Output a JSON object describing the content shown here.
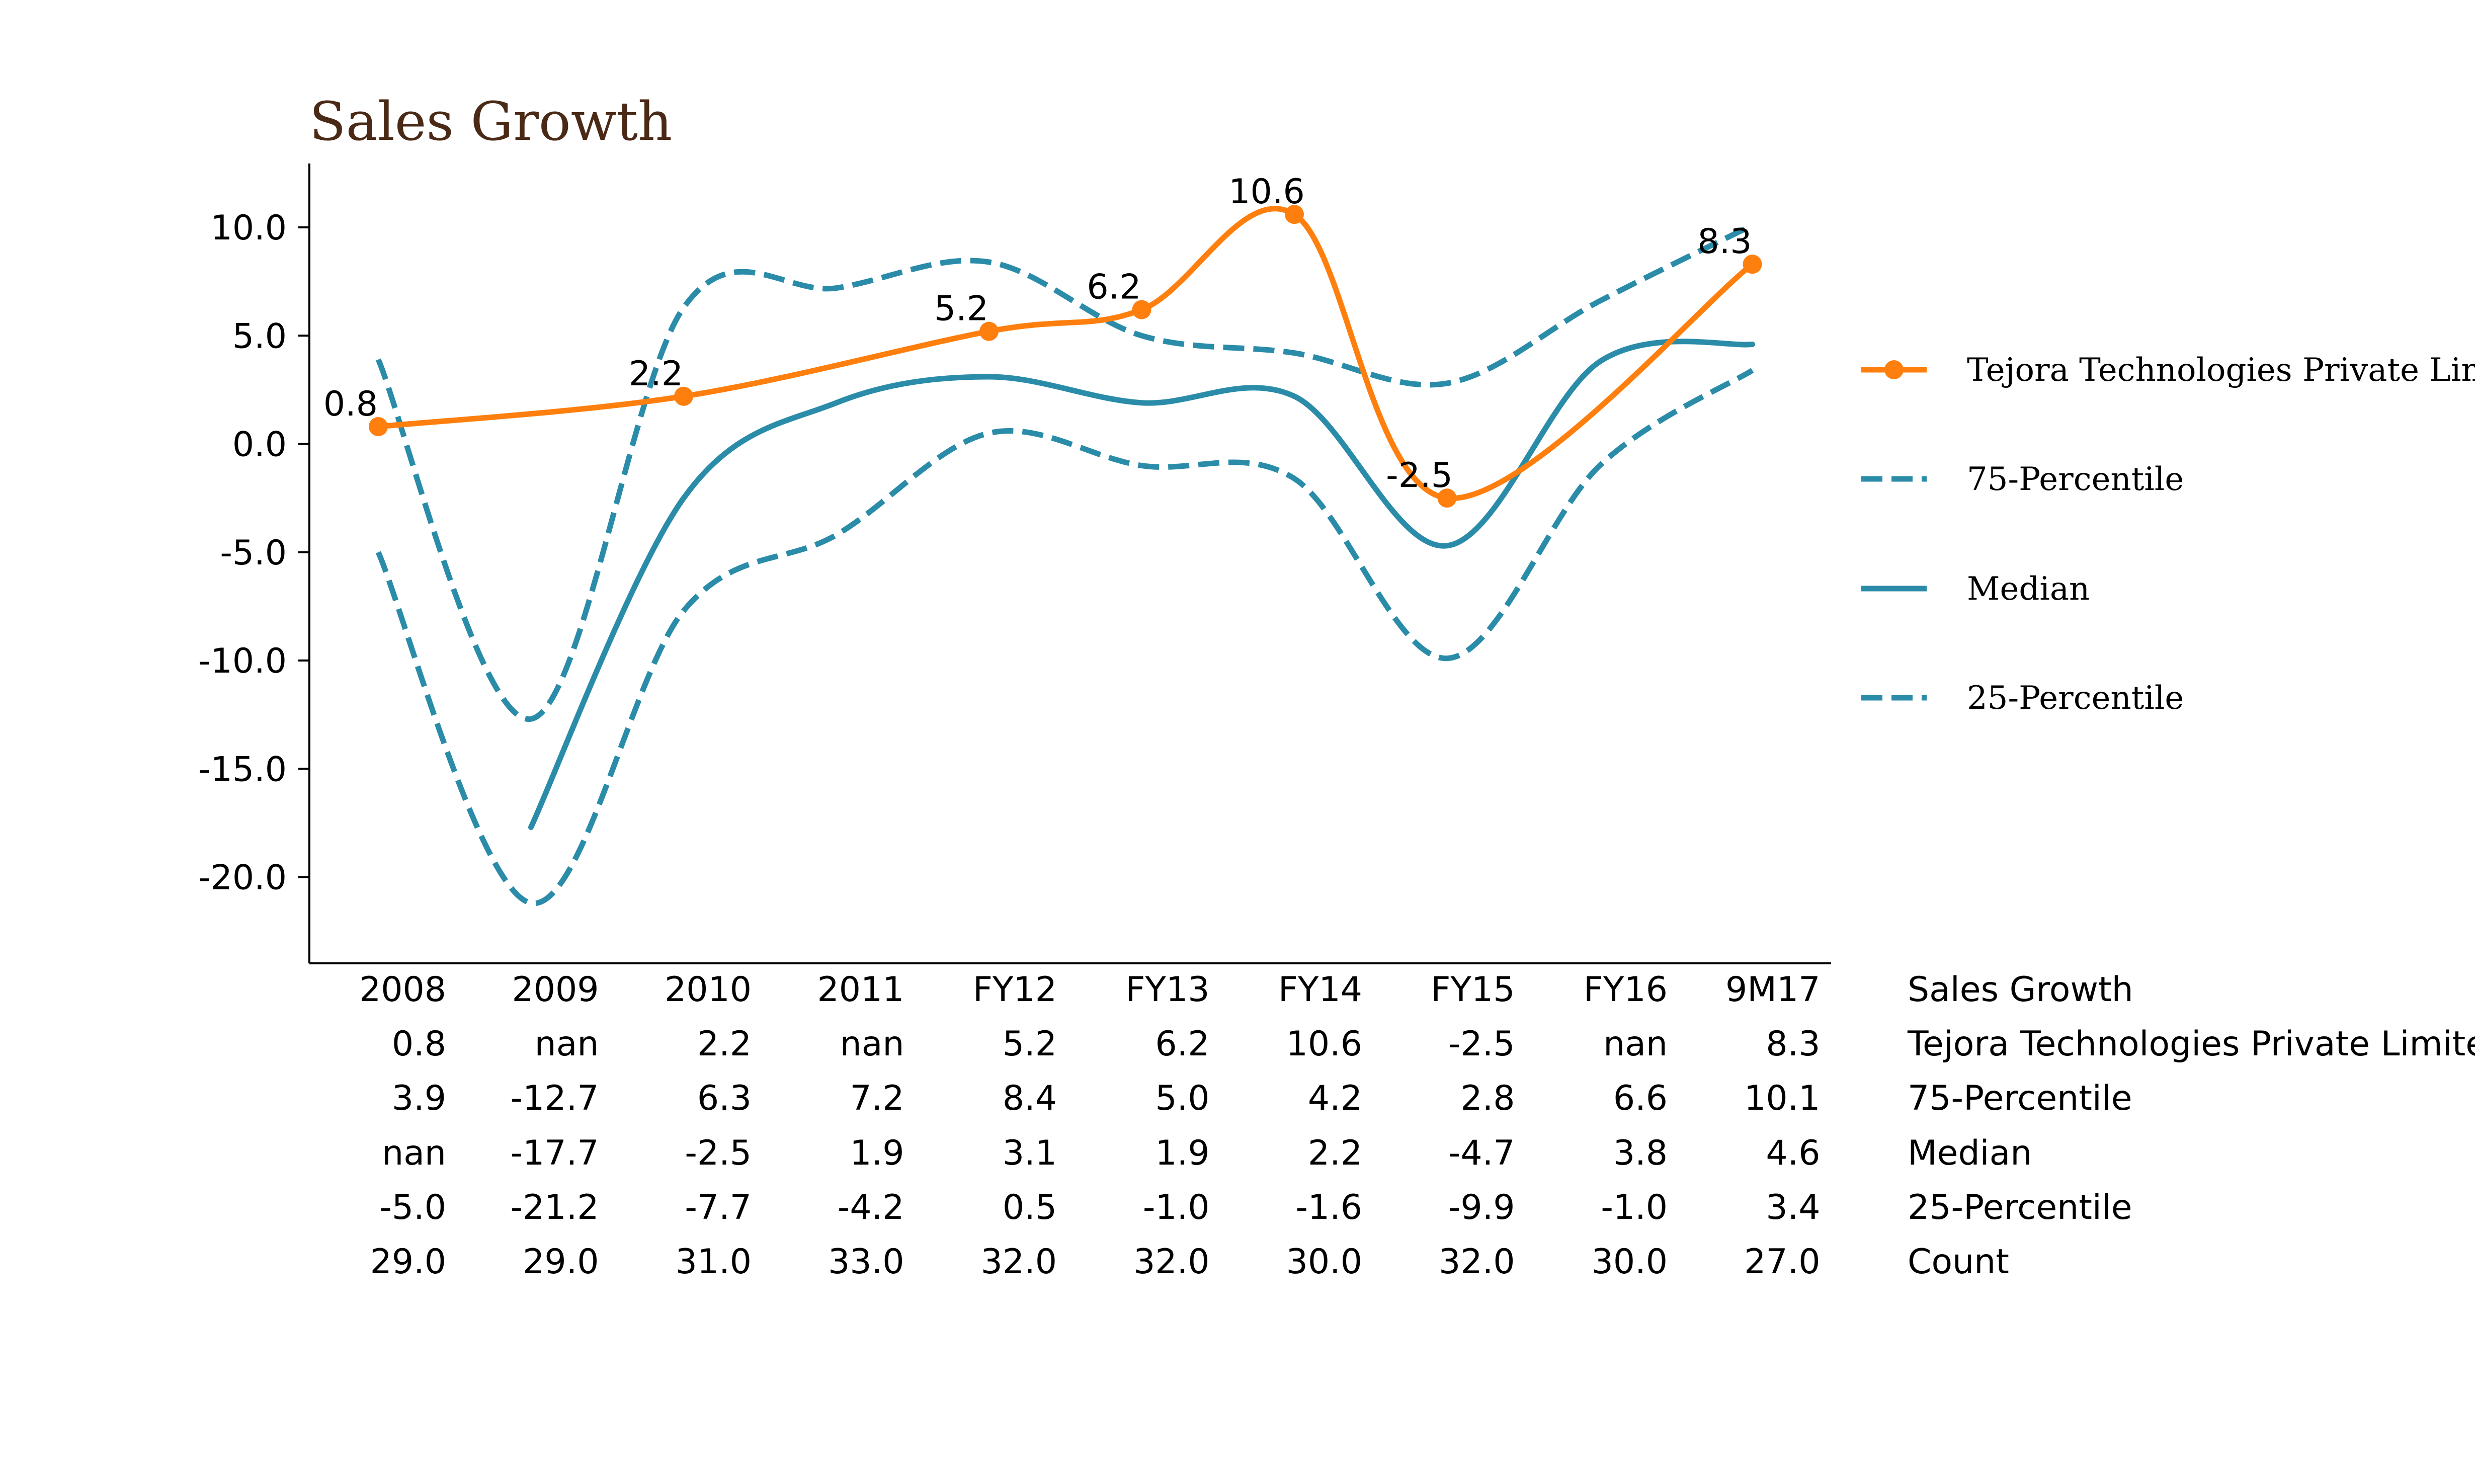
{
  "chart_data": {
    "type": "line",
    "title": "Sales Growth",
    "categories": [
      "2008",
      "2009",
      "2010",
      "2011",
      "FY12",
      "FY13",
      "FY14",
      "FY15",
      "FY16",
      "9M17"
    ],
    "y_ticks": [
      "10.0",
      "5.0",
      "0.0",
      "-5.0",
      "-10.0",
      "-15.0",
      "-20.0"
    ],
    "ylim": [
      -24,
      13
    ],
    "grid": false,
    "legend_position": "right",
    "series": [
      {
        "name": "Tejora Technologies Private Limited",
        "style": "solid-markers",
        "color": "#ff7f0e",
        "values": [
          0.8,
          null,
          2.2,
          null,
          5.2,
          6.2,
          10.6,
          -2.5,
          null,
          8.3
        ],
        "labels": [
          "0.8",
          null,
          "2.2",
          null,
          "5.2",
          "6.2",
          "10.6",
          "-2.5",
          null,
          "8.3"
        ]
      },
      {
        "name": "75-Percentile",
        "style": "dashed",
        "color": "#2a8ca8",
        "values": [
          3.9,
          -12.7,
          6.3,
          7.2,
          8.4,
          5.0,
          4.2,
          2.8,
          6.6,
          10.1
        ]
      },
      {
        "name": "Median",
        "style": "solid",
        "color": "#2a8ca8",
        "values": [
          null,
          -17.7,
          -2.5,
          1.9,
          3.1,
          1.9,
          2.2,
          -4.7,
          3.8,
          4.6
        ]
      },
      {
        "name": "25-Percentile",
        "style": "dashed",
        "color": "#2a8ca8",
        "values": [
          -5.0,
          -21.2,
          -7.7,
          -4.2,
          0.5,
          -1.0,
          -1.6,
          -9.9,
          -1.0,
          3.4
        ]
      }
    ],
    "table": {
      "header_label": "Sales Growth",
      "rows": [
        {
          "label": "Tejora Technologies Private Limited",
          "cells": [
            "0.8",
            "nan",
            "2.2",
            "nan",
            "5.2",
            "6.2",
            "10.6",
            "-2.5",
            "nan",
            "8.3"
          ]
        },
        {
          "label": "75-Percentile",
          "cells": [
            "3.9",
            "-12.7",
            "6.3",
            "7.2",
            "8.4",
            "5.0",
            "4.2",
            "2.8",
            "6.6",
            "10.1"
          ]
        },
        {
          "label": "Median",
          "cells": [
            "nan",
            "-17.7",
            "-2.5",
            "1.9",
            "3.1",
            "1.9",
            "2.2",
            "-4.7",
            "3.8",
            "4.6"
          ]
        },
        {
          "label": "25-Percentile",
          "cells": [
            "-5.0",
            "-21.2",
            "-7.7",
            "-4.2",
            "0.5",
            "-1.0",
            "-1.6",
            "-9.9",
            "-1.0",
            "3.4"
          ]
        },
        {
          "label": "Count",
          "cells": [
            "29.0",
            "29.0",
            "31.0",
            "33.0",
            "32.0",
            "32.0",
            "30.0",
            "32.0",
            "30.0",
            "27.0"
          ]
        }
      ]
    }
  }
}
